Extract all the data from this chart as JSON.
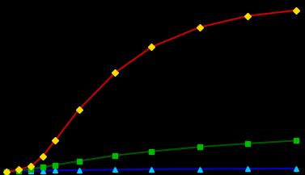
{
  "background_color": "#000000",
  "axes_bg_color": "#000000",
  "x_nonreactive": [
    0,
    1,
    2,
    3,
    4,
    6,
    9,
    12,
    16,
    20,
    24
  ],
  "y_nonreactive": [
    0.0,
    0.002,
    0.003,
    0.004,
    0.005,
    0.006,
    0.008,
    0.009,
    0.01,
    0.011,
    0.012
  ],
  "line_color_nonreactive": "#0000cc",
  "marker_color_nonreactive": "#00ccff",
  "marker_nonreactive": "^",
  "x_mod_reactive": [
    0,
    1,
    2,
    3,
    4,
    6,
    9,
    12,
    16,
    20,
    24
  ],
  "y_mod_reactive": [
    0.0,
    0.004,
    0.01,
    0.016,
    0.024,
    0.038,
    0.058,
    0.072,
    0.088,
    0.1,
    0.11
  ],
  "line_color_mod_reactive": "#005500",
  "marker_color_mod_reactive": "#00bb00",
  "marker_mod_reactive": "s",
  "x_highly_reactive": [
    0,
    1,
    2,
    3,
    4,
    6,
    9,
    12,
    16,
    20,
    24
  ],
  "y_highly_reactive": [
    0.0,
    0.008,
    0.02,
    0.055,
    0.11,
    0.22,
    0.35,
    0.44,
    0.51,
    0.55,
    0.57
  ],
  "line_color_highly_reactive": "#cc0000",
  "marker_color_highly_reactive": "#ffdd00",
  "marker_highly_reactive": "D",
  "xlim": [
    -0.3,
    24.5
  ],
  "ylim": [
    -0.005,
    0.6
  ],
  "linewidth": 1.5,
  "markersize": 4.5
}
